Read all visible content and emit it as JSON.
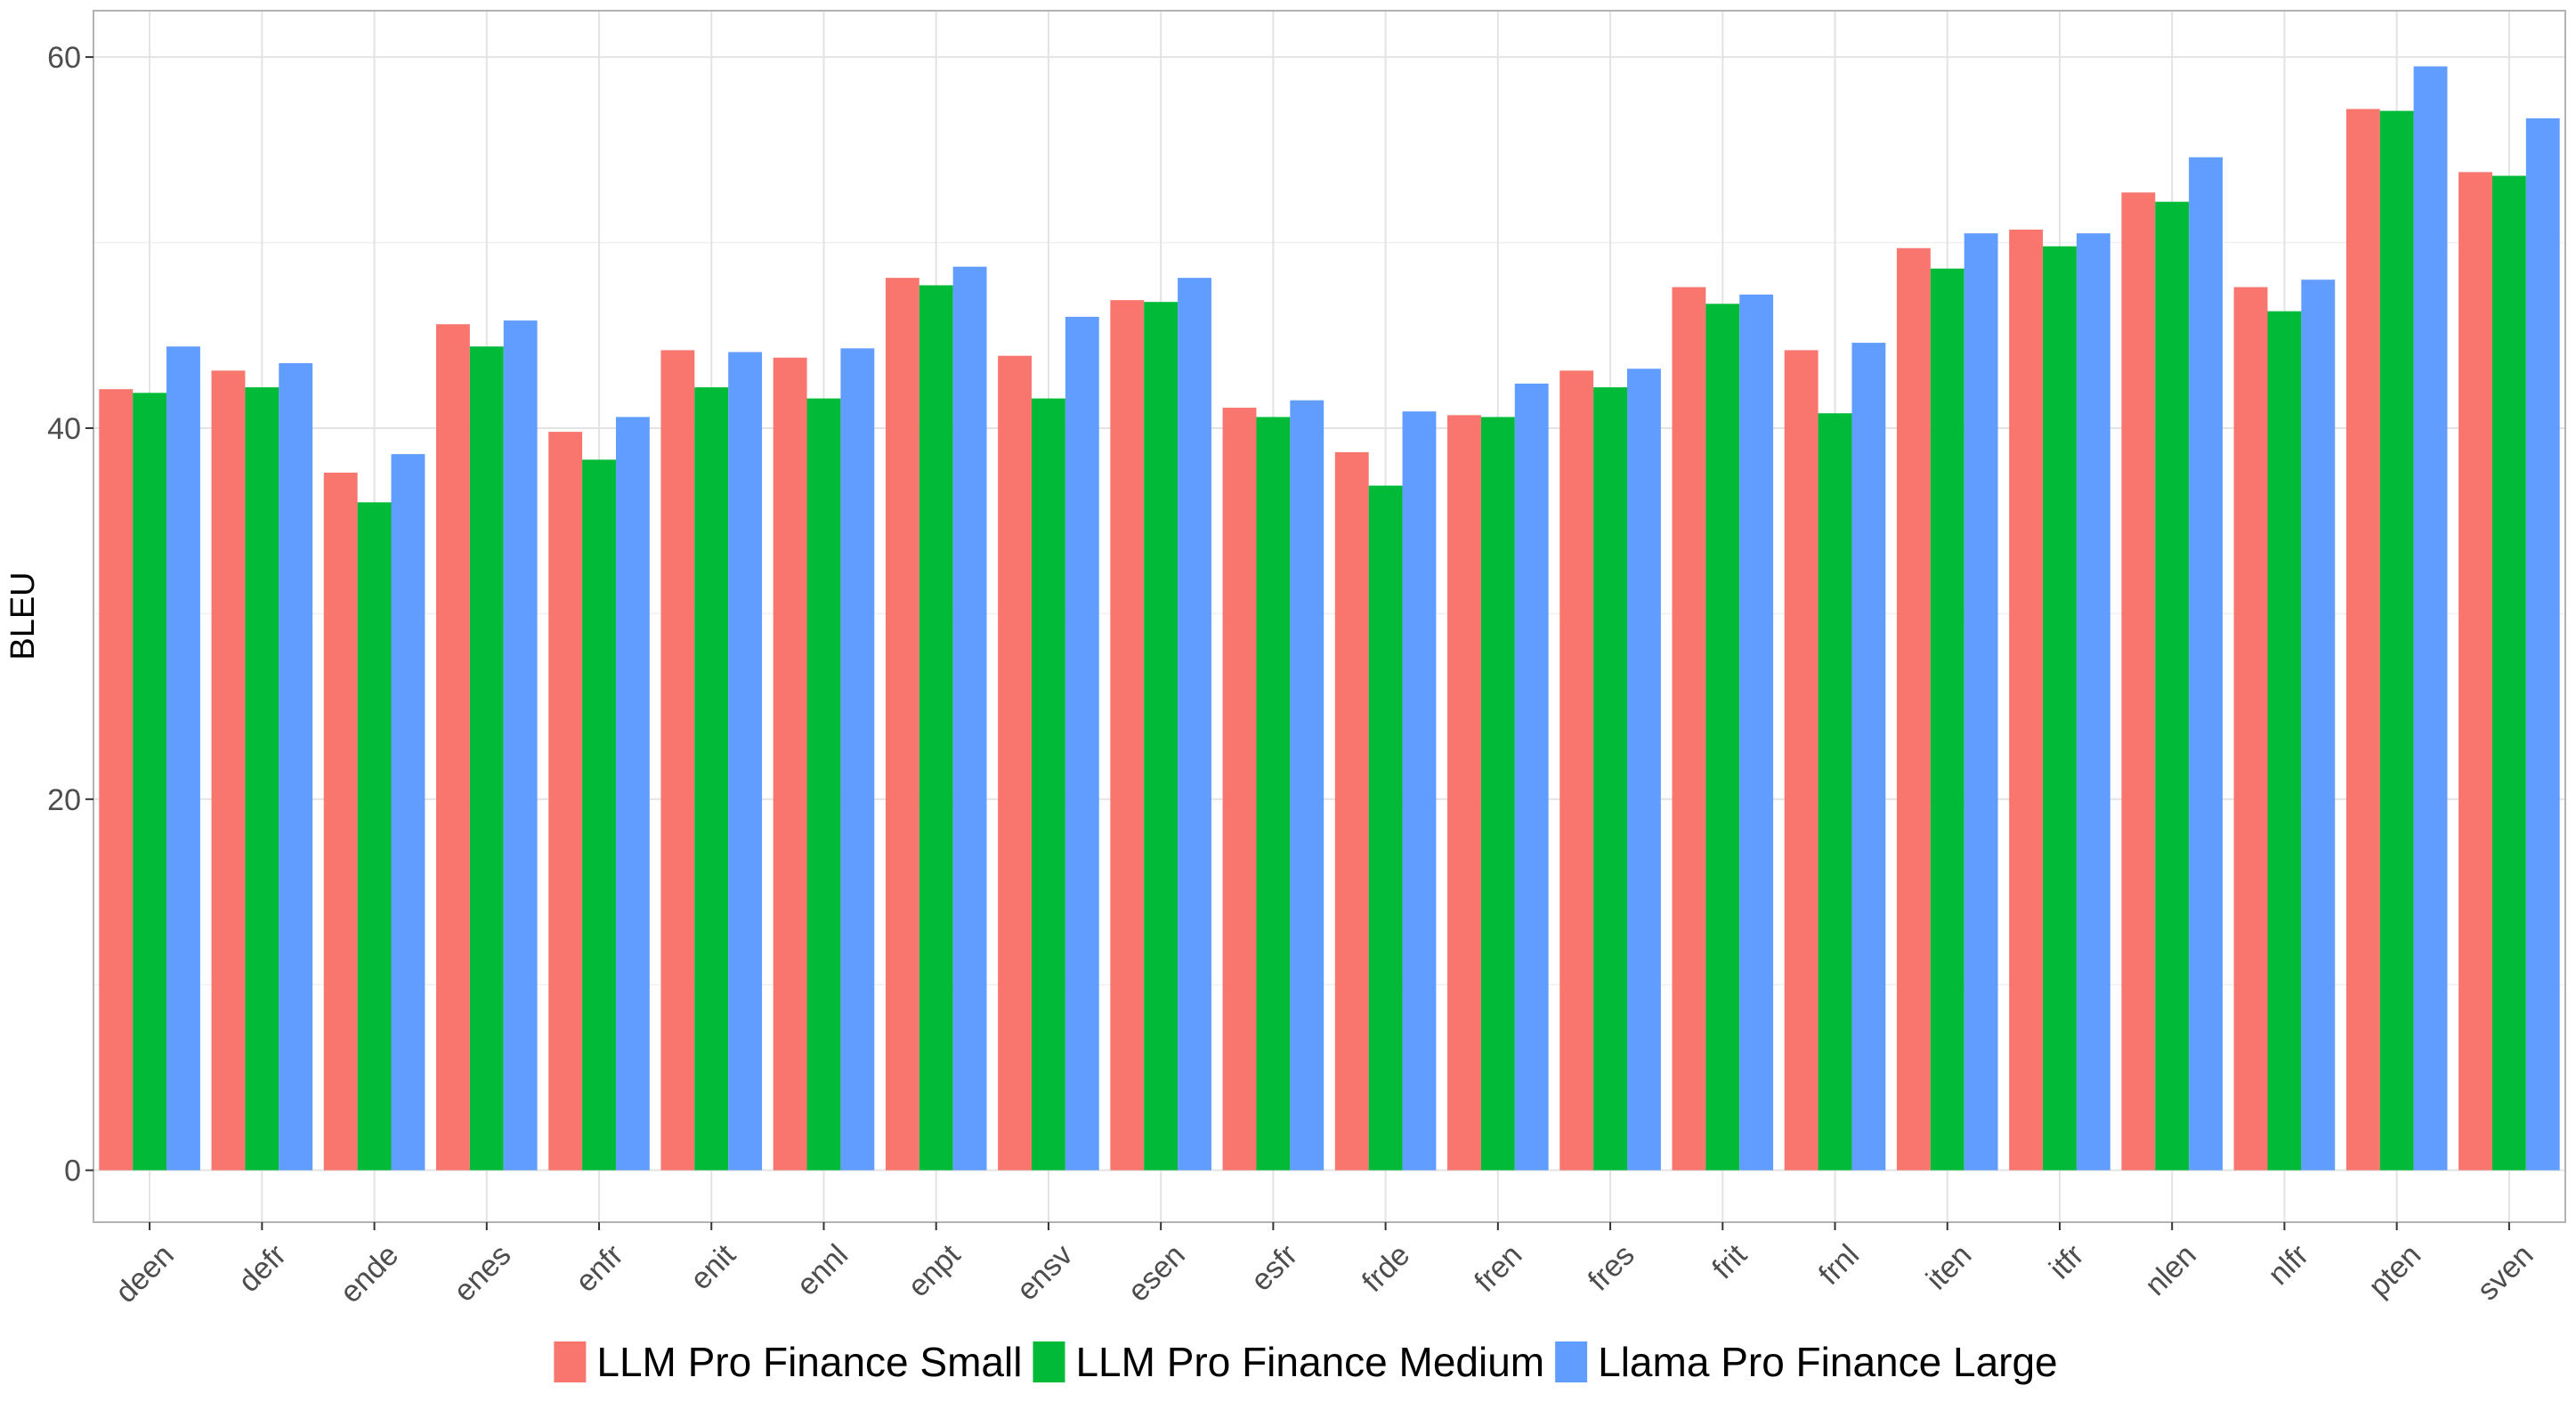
{
  "chart_data": {
    "type": "bar",
    "title": "",
    "xlabel": "",
    "ylabel": "BLEU",
    "ylim": [
      -2.8,
      62.5
    ],
    "yticks": [
      0,
      20,
      40,
      60
    ],
    "grid": true,
    "legend_position": "bottom",
    "categories": [
      "deen",
      "defr",
      "ende",
      "enes",
      "enfr",
      "enit",
      "ennl",
      "enpt",
      "ensv",
      "esen",
      "esfr",
      "frde",
      "fren",
      "fres",
      "frit",
      "frnl",
      "iten",
      "itfr",
      "nlen",
      "nlfr",
      "pten",
      "sven"
    ],
    "series": [
      {
        "name": "LLM Pro Finance Small",
        "color": "#F8766D",
        "values": [
          42.1,
          43.1,
          37.6,
          45.6,
          39.8,
          44.2,
          43.8,
          48.1,
          43.9,
          46.9,
          41.1,
          38.7,
          40.7,
          43.1,
          47.6,
          44.2,
          49.7,
          50.7,
          52.7,
          47.6,
          57.2,
          53.8
        ]
      },
      {
        "name": "LLM Pro Finance Medium",
        "color": "#00BA38",
        "values": [
          41.9,
          42.2,
          36.0,
          44.4,
          38.3,
          42.2,
          41.6,
          47.7,
          41.6,
          46.8,
          40.6,
          36.9,
          40.6,
          42.2,
          46.7,
          40.8,
          48.6,
          49.8,
          52.2,
          46.3,
          57.1,
          53.6
        ]
      },
      {
        "name": "Llama Pro Finance Large",
        "color": "#619CFF",
        "values": [
          44.4,
          43.5,
          38.6,
          45.8,
          40.6,
          44.1,
          44.3,
          48.7,
          46.0,
          48.1,
          41.5,
          40.9,
          42.4,
          43.2,
          47.2,
          44.6,
          50.5,
          50.5,
          54.6,
          48.0,
          59.5,
          56.7
        ]
      }
    ]
  }
}
